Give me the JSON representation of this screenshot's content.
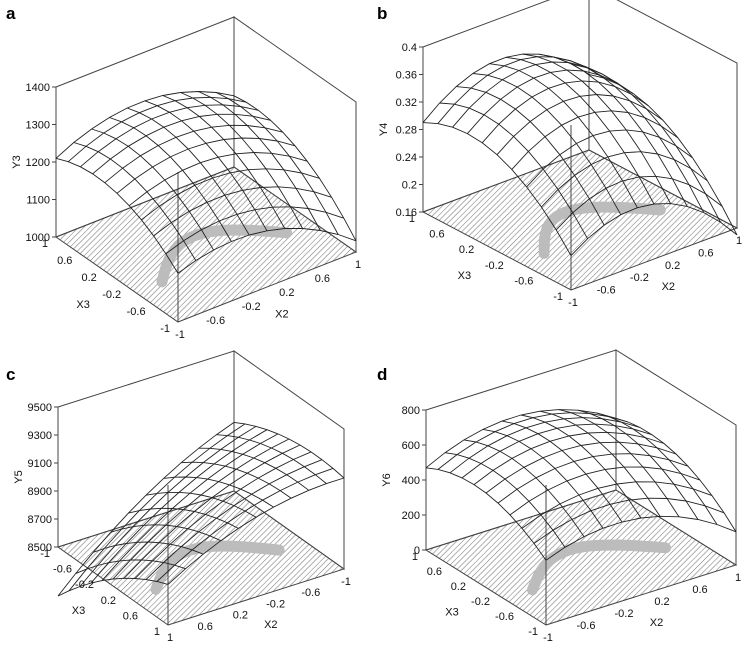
{
  "colors": {
    "mesh": "#222222",
    "frame": "#444444",
    "contour": "#bcbcbc",
    "hatch": "#333333"
  },
  "chart_data": [
    {
      "panel_label": "a",
      "type": "surface3d",
      "zlabel": "Y3",
      "xlabel": "X2",
      "ylabel": "X3",
      "zticks": [
        "1000",
        "1100",
        "1200",
        "1300",
        "1400"
      ],
      "x_ticks": [
        "-1",
        "-0.6",
        "-0.2",
        "0.2",
        "0.6",
        "1"
      ],
      "y_ticks": [
        "1",
        "0.6",
        "0.2",
        "-0.2",
        "-0.6",
        "-1"
      ],
      "zlim": [
        1000,
        1400
      ],
      "grid_size": 11,
      "surface": {
        "base": 1270,
        "xtilt": -30,
        "yaw": 60,
        "xcurv": -70,
        "ycurv": -60,
        "xy": 20
      }
    },
    {
      "panel_label": "b",
      "type": "surface3d",
      "zlabel": "Y4",
      "xlabel": "X2",
      "ylabel": "X3",
      "zticks": [
        "0.16",
        "0.2",
        "0.24",
        "0.28",
        "0.32",
        "0.36",
        "0.4"
      ],
      "x_ticks": [
        "-1",
        "-0.6",
        "-0.2",
        "0.2",
        "0.6",
        "1"
      ],
      "y_ticks": [
        "1",
        "0.6",
        "0.2",
        "-0.2",
        "-0.6",
        "-1"
      ],
      "zlim": [
        0.16,
        0.4
      ],
      "grid_size": 11,
      "surface": {
        "base": 0.34,
        "xtilt": -0.02,
        "yaw": 0.05,
        "xcurv": -0.06,
        "ycurv": -0.05,
        "xy": 0.01
      }
    },
    {
      "panel_label": "c",
      "type": "surface3d",
      "zlabel": "Y5",
      "xlabel": "X2",
      "ylabel": "X3",
      "zticks": [
        "8500",
        "8700",
        "8900",
        "9100",
        "9300",
        "9500"
      ],
      "x_ticks": [
        "1",
        "0.6",
        "0.2",
        "-0.2",
        "-0.6",
        "-1"
      ],
      "y_ticks": [
        "-1",
        "-0.6",
        "-0.2",
        "0.2",
        "0.6",
        "1"
      ],
      "zlim": [
        8500,
        9500
      ],
      "grid_size": 11,
      "surface": {
        "base": 8950,
        "xtilt": 300,
        "yaw": -200,
        "xcurv": -100,
        "ycurv": -80,
        "xy": 120
      }
    },
    {
      "panel_label": "d",
      "type": "surface3d",
      "zlabel": "Y6",
      "xlabel": "X2",
      "ylabel": "X3",
      "zticks": [
        "0",
        "200",
        "400",
        "600",
        "800"
      ],
      "x_ticks": [
        "-1",
        "-0.6",
        "-0.2",
        "0.2",
        "0.6",
        "1"
      ],
      "y_ticks": [
        "1",
        "0.6",
        "0.2",
        "-0.2",
        "-0.6",
        "-1"
      ],
      "zlim": [
        0,
        800
      ],
      "grid_size": 11,
      "surface": {
        "base": 640,
        "xtilt": -60,
        "yaw": 80,
        "xcurv": -160,
        "ycurv": -120,
        "xy": 30
      }
    }
  ]
}
